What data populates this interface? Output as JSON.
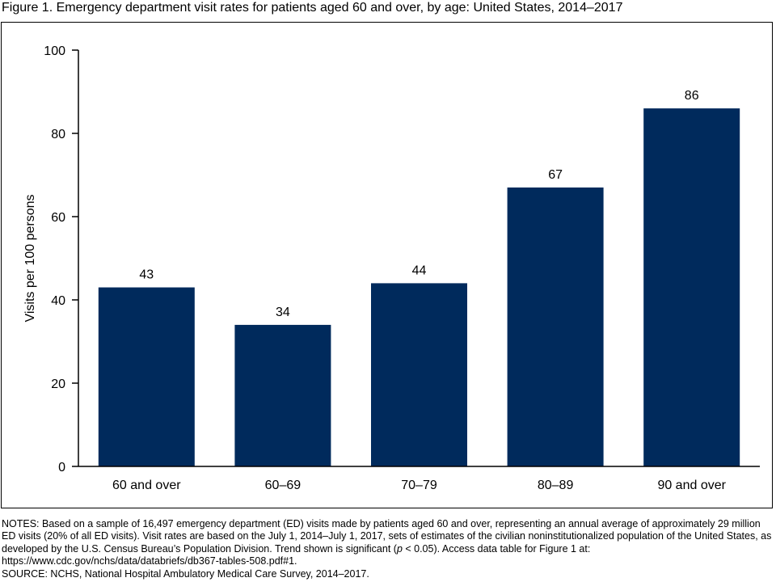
{
  "figure_title": "Figure 1. Emergency department visit rates for patients aged 60 and over, by age: United States, 2014–2017",
  "notes": {
    "text_before_p": "NOTES: Based on a sample of 16,497 emergency department (ED) visits made by patients aged 60 and over, representing an annual average of approximately 29 million ED visits (20% of all ED visits). Visit rates are based on the July 1, 2014–July 1, 2017, sets of estimates of the civilian noninstitutionalized population of the United States, as developed by the U.S. Census Bureau’s Population Division. Trend shown is significant (",
    "p_symbol": "p",
    "text_after_p": " < 0.05). Access data table for Figure 1 at: https://www.cdc.gov/nchs/data/databriefs/db367-tables-508.pdf#1.",
    "source": "SOURCE: NCHS, National Hospital Ambulatory Medical Care Survey, 2014–2017."
  },
  "chart_data": {
    "type": "bar",
    "title": "Figure 1. Emergency department visit rates for patients aged 60 and over, by age: United States, 2014–2017",
    "categories": [
      "60 and over",
      "60–69",
      "70–79",
      "80–89",
      "90 and over"
    ],
    "values": [
      43,
      34,
      44,
      67,
      86
    ],
    "data_labels": [
      "43",
      "34",
      "44",
      "67",
      "86"
    ],
    "xlabel": "",
    "ylabel": "Visits per 100 persons",
    "ylim": [
      0,
      100
    ],
    "yticks": [
      0,
      20,
      40,
      60,
      80,
      100
    ],
    "grid": false,
    "legend": "none",
    "bar_color": "#002a5c"
  }
}
